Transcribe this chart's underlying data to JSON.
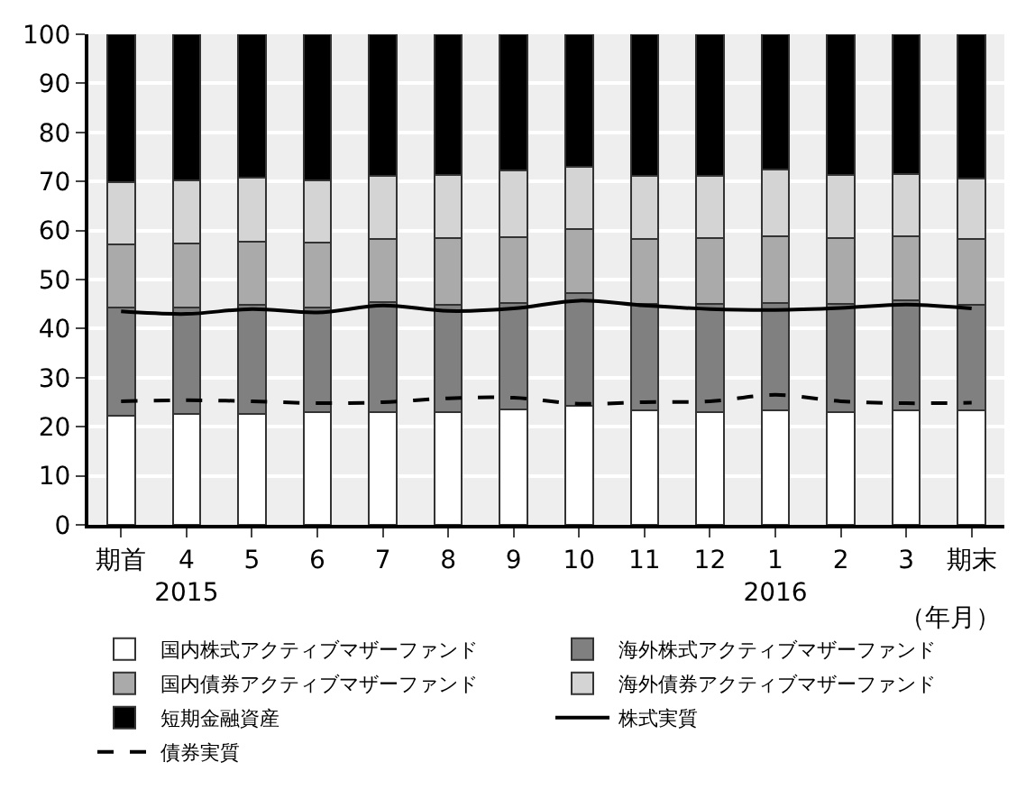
{
  "chart_data": {
    "type": "bar",
    "stacked": true,
    "categories": [
      "期首",
      "4\n2015",
      "5",
      "6",
      "7",
      "8",
      "9",
      "10",
      "11",
      "12",
      "1\n2016",
      "2",
      "3",
      "期末"
    ],
    "xlabel": "（年月）",
    "ylim": [
      0,
      100
    ],
    "yticks": [
      0,
      10,
      20,
      30,
      40,
      50,
      60,
      70,
      80,
      90,
      100
    ],
    "grid": "y",
    "legend": "bottom",
    "series": [
      {
        "name": "国内株式アクティブマザーファンド",
        "color": "#ffffff",
        "values": [
          22.3,
          22.6,
          22.6,
          22.9,
          22.9,
          22.9,
          23.5,
          24.2,
          23.3,
          22.9,
          23.3,
          22.9,
          23.3,
          23.3
        ]
      },
      {
        "name": "海外株式アクティブマザーファンド",
        "color": "#808080",
        "values": [
          22.0,
          21.7,
          22.2,
          21.4,
          22.5,
          21.9,
          21.7,
          23.1,
          21.8,
          22.2,
          22.0,
          22.2,
          22.5,
          21.6
        ]
      },
      {
        "name": "国内債券アクティブマザーファンド",
        "color": "#aaaaaa",
        "values": [
          12.9,
          13.1,
          13.0,
          13.3,
          12.9,
          13.6,
          13.4,
          13.0,
          13.1,
          13.3,
          13.5,
          13.4,
          13.0,
          13.3
        ]
      },
      {
        "name": "海外債券アクティブマザーファンド",
        "color": "#d4d4d4",
        "values": [
          12.6,
          12.8,
          12.9,
          12.7,
          12.8,
          13.0,
          13.6,
          12.6,
          12.9,
          12.7,
          13.6,
          12.9,
          12.8,
          12.3
        ]
      },
      {
        "name": "短期金融資産",
        "color": "#000000",
        "values": [
          30.2,
          29.8,
          29.3,
          29.7,
          28.9,
          28.6,
          27.8,
          27.1,
          28.9,
          28.9,
          27.6,
          28.6,
          28.4,
          29.5
        ]
      },
      {
        "name": "株式実質",
        "type": "line",
        "line_style": "solid",
        "color": "#000000",
        "values": [
          43.5,
          43.0,
          44.0,
          43.3,
          44.7,
          43.6,
          44.1,
          45.7,
          44.7,
          44.0,
          43.8,
          44.2,
          44.9,
          44.1
        ]
      },
      {
        "name": "債券実質",
        "type": "line",
        "line_style": "dashed",
        "color": "#000000",
        "values": [
          25.2,
          25.4,
          25.2,
          24.8,
          25.0,
          25.8,
          25.9,
          24.7,
          25.0,
          25.2,
          26.5,
          25.2,
          24.8,
          24.9
        ]
      }
    ]
  }
}
